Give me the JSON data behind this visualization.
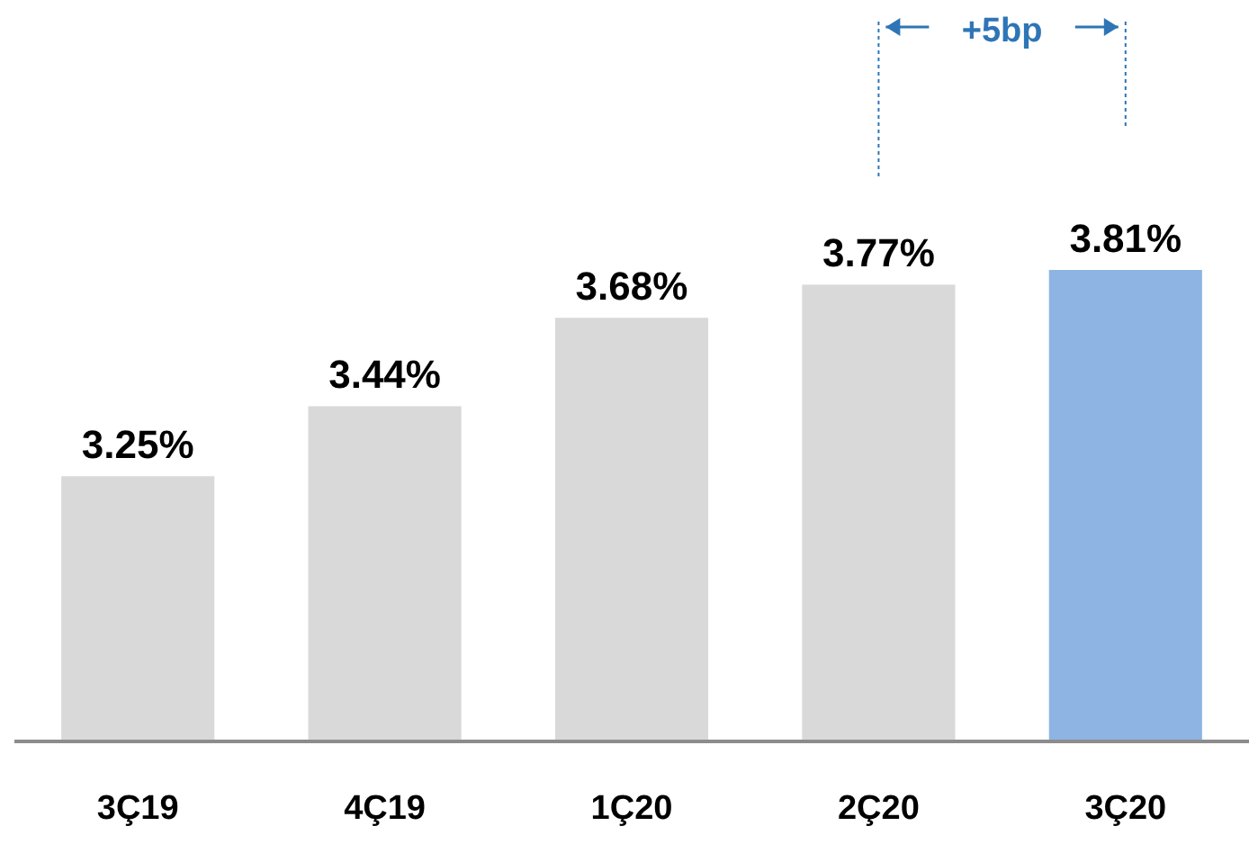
{
  "chart_data": {
    "type": "bar",
    "categories": [
      "3Ç19",
      "4Ç19",
      "1Ç20",
      "2Ç20",
      "3Ç20"
    ],
    "values": [
      3.25,
      3.44,
      3.68,
      3.77,
      3.81
    ],
    "value_labels": [
      "3.25%",
      "3.44%",
      "3.68%",
      "3.77%",
      "3.81%"
    ],
    "colors": [
      "#d9d9d9",
      "#d9d9d9",
      "#d9d9d9",
      "#d9d9d9",
      "#8eb4e3"
    ],
    "ylim": [
      2.53,
      3.81
    ],
    "tick_labels": "x",
    "annotations": [
      "+5bp"
    ]
  }
}
